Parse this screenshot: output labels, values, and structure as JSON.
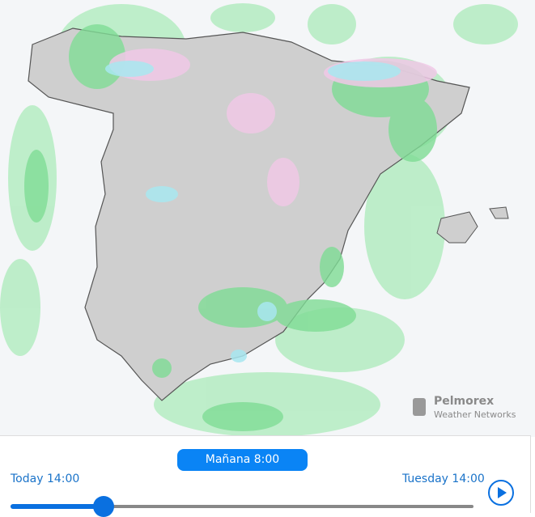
{
  "player": {
    "current_time": "Mañana 8:00",
    "start_label": "Today 14:00",
    "end_label": "Tuesday 14:00"
  },
  "logo": {
    "name": "Pelmorex",
    "subtitle": "Weather Networks"
  }
}
